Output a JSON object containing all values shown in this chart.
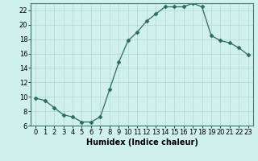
{
  "x": [
    0,
    1,
    2,
    3,
    4,
    5,
    6,
    7,
    8,
    9,
    10,
    11,
    12,
    13,
    14,
    15,
    16,
    17,
    18,
    19,
    20,
    21,
    22,
    23
  ],
  "y": [
    9.8,
    9.5,
    8.5,
    7.5,
    7.2,
    6.5,
    6.5,
    7.2,
    11.0,
    14.8,
    17.8,
    19.0,
    20.5,
    21.5,
    22.5,
    22.5,
    22.5,
    23.0,
    22.5,
    18.5,
    17.8,
    17.5,
    16.8,
    15.8
  ],
  "line_color": "#2d6b5e",
  "marker": "D",
  "marker_size": 2.5,
  "bg_color": "#cff0eb",
  "grid_color": "#b0d9d0",
  "xlabel": "Humidex (Indice chaleur)",
  "ylim": [
    6,
    23
  ],
  "xlim": [
    -0.5,
    23.5
  ],
  "yticks": [
    6,
    8,
    10,
    12,
    14,
    16,
    18,
    20,
    22
  ],
  "xtick_labels": [
    "0",
    "1",
    "2",
    "3",
    "4",
    "5",
    "6",
    "7",
    "8",
    "9",
    "10",
    "11",
    "12",
    "13",
    "14",
    "15",
    "16",
    "17",
    "18",
    "19",
    "20",
    "21",
    "22",
    "23"
  ],
  "xlabel_fontsize": 7,
  "tick_fontsize": 6
}
